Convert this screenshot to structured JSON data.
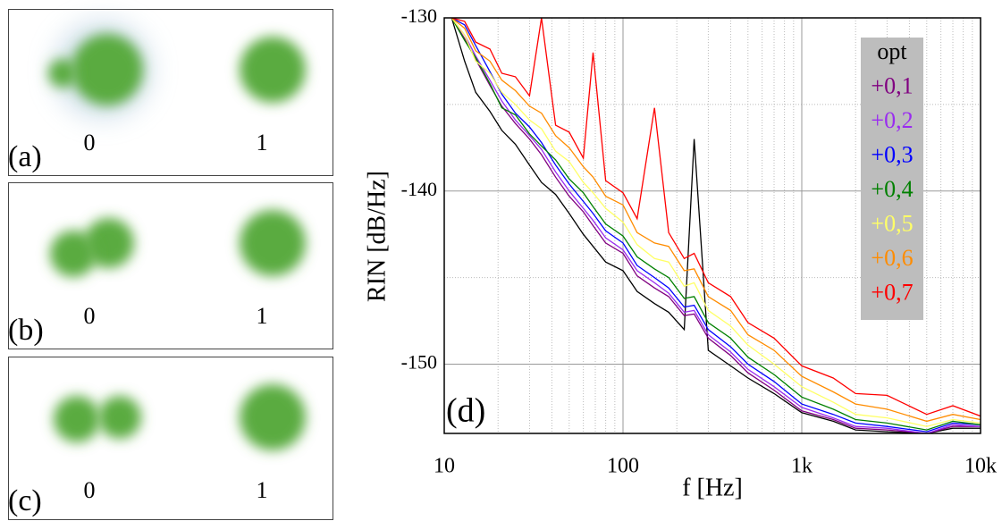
{
  "panels": [
    {
      "label": "(a)",
      "left": "0",
      "right": "1"
    },
    {
      "label": "(b)",
      "left": "0",
      "right": "1"
    },
    {
      "label": "(c)",
      "left": "0",
      "right": "1"
    }
  ],
  "chart_data": {
    "type": "line",
    "panel_label": "(d)",
    "xlabel": "f [Hz]",
    "ylabel": "RIN [dB/Hz]",
    "xscale": "log",
    "grid": true,
    "minor_grid": true,
    "legend": "upper right",
    "xlim": [
      10,
      10000
    ],
    "ylim": [
      -154,
      -130
    ],
    "xticks": [
      10,
      100,
      {
        "value": 1000,
        "label": "1k"
      },
      {
        "value": 10000,
        "label": "10k"
      }
    ],
    "yticks": [
      -130,
      -140,
      -150
    ],
    "x": [
      11,
      13,
      15,
      18,
      21,
      25,
      30,
      35,
      42,
      50,
      60,
      68,
      80,
      100,
      120,
      150,
      180,
      220,
      250,
      300,
      400,
      500,
      700,
      1000,
      1500,
      2000,
      3000,
      5000,
      7000,
      10000
    ],
    "series": [
      {
        "name": "opt",
        "color": "#000000",
        "values": [
          -130,
          -132.5,
          -134.3,
          -135.4,
          -136.5,
          -137.3,
          -138.5,
          -139.5,
          -140.2,
          -141.3,
          -142.5,
          -143.2,
          -144.1,
          -144.6,
          -145.8,
          -146.5,
          -147,
          -148,
          -137,
          -149.2,
          -150.1,
          -150.8,
          -151.7,
          -152.8,
          -153.3,
          -153.8,
          -153.9,
          -154,
          -153.7,
          -153.7
        ]
      },
      {
        "name": "+0,1",
        "color": "#800080",
        "values": [
          -130,
          -131.2,
          -132.4,
          -133.9,
          -135.1,
          -136.1,
          -137,
          -137.9,
          -139.2,
          -140.3,
          -141.2,
          -142,
          -143,
          -143.6,
          -144.9,
          -145.6,
          -146.1,
          -147.2,
          -147.1,
          -148.5,
          -149.5,
          -150.5,
          -151.5,
          -152.7,
          -153.2,
          -153.7,
          -153.8,
          -154,
          -153.6,
          -153.6
        ]
      },
      {
        "name": "+0,2",
        "color": "#9a2cf0",
        "values": [
          -130,
          -131,
          -132.2,
          -133.6,
          -134.8,
          -135.9,
          -136.8,
          -137.6,
          -138.9,
          -140,
          -141,
          -141.7,
          -142.7,
          -143.4,
          -144.6,
          -145.3,
          -145.9,
          -147,
          -146.9,
          -148.3,
          -149.3,
          -150.3,
          -151.3,
          -152.5,
          -153.1,
          -153.6,
          -153.7,
          -154,
          -153.5,
          -153.6
        ]
      },
      {
        "name": "+0,3",
        "color": "#0000ff",
        "values": [
          -130,
          -130.4,
          -131.6,
          -133.1,
          -134.4,
          -135.5,
          -136.3,
          -137.2,
          -138.5,
          -139.6,
          -140.6,
          -141.3,
          -142.3,
          -143,
          -144.3,
          -145,
          -145.6,
          -146.7,
          -146.6,
          -148,
          -149,
          -150,
          -151,
          -152.3,
          -152.9,
          -153.4,
          -153.6,
          -153.9,
          -153.4,
          -153.5
        ]
      },
      {
        "name": "+0,4",
        "color": "#008000",
        "values": [
          -130,
          -131.3,
          -132.3,
          -133.8,
          -135.2,
          -135.6,
          -136.7,
          -137.4,
          -138.2,
          -139.3,
          -140.1,
          -140.9,
          -141.9,
          -142.6,
          -143.8,
          -144.5,
          -145,
          -146.2,
          -146.1,
          -147.6,
          -148.5,
          -149.6,
          -150.6,
          -151.9,
          -152.6,
          -153.2,
          -153.4,
          -153.8,
          -153.3,
          -153.5
        ]
      },
      {
        "name": "+0,5",
        "color": "#ffff66",
        "values": [
          -130,
          -131,
          -132.5,
          -133.2,
          -134.3,
          -135,
          -135.9,
          -136.4,
          -137.7,
          -138.3,
          -139.5,
          -140.1,
          -141,
          -141.8,
          -143.1,
          -143.9,
          -144.1,
          -145.5,
          -145.3,
          -146.9,
          -147.8,
          -148.9,
          -150,
          -151.3,
          -152.2,
          -152.9,
          -153.1,
          -153.6,
          -153.2,
          -153.4
        ]
      },
      {
        "name": "+0,6",
        "color": "#ff8c00",
        "values": [
          -130,
          -130.6,
          -131.9,
          -132.5,
          -133.6,
          -134.2,
          -135.1,
          -135.5,
          -136.8,
          -137.5,
          -138.6,
          -139.2,
          -140.3,
          -140.8,
          -142.4,
          -143,
          -143.2,
          -144.6,
          -144.5,
          -146.1,
          -146.9,
          -148.3,
          -149.2,
          -150.7,
          -151.6,
          -152.3,
          -152.6,
          -153.3,
          -152.9,
          -153.2
        ]
      },
      {
        "name": "+0,7",
        "color": "#ff0000",
        "values": [
          -130,
          -130.2,
          -131.4,
          -131.8,
          -133.2,
          -133.4,
          -134.5,
          -130,
          -136.2,
          -136.6,
          -138.1,
          -132,
          -139.4,
          -140.1,
          -141.6,
          -135.2,
          -142.4,
          -143.9,
          -143.6,
          -145.3,
          -146.1,
          -147.6,
          -148.5,
          -150.1,
          -150.8,
          -151.7,
          -151.8,
          -152.9,
          -152.4,
          -153
        ]
      }
    ]
  }
}
